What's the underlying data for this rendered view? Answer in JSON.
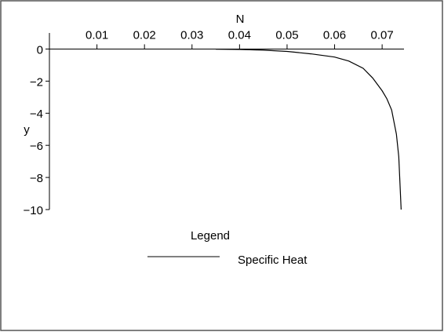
{
  "chart_data": {
    "type": "line",
    "xlabel": "N",
    "ylabel": "y",
    "legend_title": "Legend",
    "x": [
      0.035,
      0.04,
      0.045,
      0.05,
      0.055,
      0.06,
      0.063,
      0.066,
      0.068,
      0.07,
      0.071,
      0.072,
      0.073,
      0.0735,
      0.074
    ],
    "series": [
      {
        "name": "Specific Heat",
        "color": "#000000",
        "values": [
          -0.01,
          -0.03,
          -0.07,
          -0.15,
          -0.3,
          -0.5,
          -0.75,
          -1.2,
          -1.8,
          -2.6,
          -3.1,
          -3.8,
          -5.3,
          -6.7,
          -10
        ]
      }
    ],
    "xlim": [
      0,
      0.0746
    ],
    "ylim": [
      -10,
      1
    ],
    "xticks": [
      0.01,
      0.02,
      0.03,
      0.04,
      0.05,
      0.06,
      0.07
    ],
    "yticks": [
      0,
      {
        "value": -2,
        "label": "−2"
      },
      {
        "value": -4,
        "label": "−4"
      },
      {
        "value": -6,
        "label": "−6"
      },
      {
        "value": -8,
        "label": "−8"
      },
      {
        "value": -10,
        "label": "−10"
      }
    ]
  }
}
